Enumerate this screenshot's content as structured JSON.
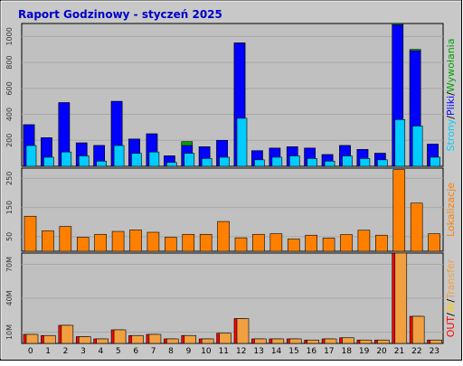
{
  "title": "Raport Godzinowy -  styczeń 2025",
  "colors": {
    "background": "#ffffff",
    "frame_bg": "#c8c8c8",
    "plot_bg": "#c0c0c0",
    "title": "#0000cc",
    "pages": "#0000ff",
    "files": "#00ccff",
    "hits": "#00a000",
    "visits": "#ff8000",
    "traffic": "#ff0000",
    "in": "#ffcc00",
    "out": "#f0a040"
  },
  "chart_data": [
    {
      "type": "bar",
      "panel": "top",
      "categories": [
        "0",
        "1",
        "2",
        "3",
        "4",
        "5",
        "6",
        "7",
        "8",
        "9",
        "10",
        "11",
        "12",
        "13",
        "14",
        "15",
        "16",
        "17",
        "18",
        "19",
        "20",
        "21",
        "22",
        "23"
      ],
      "ylim": [
        0,
        1100
      ],
      "yticks": [
        "200",
        "400",
        "600",
        "800",
        "1000"
      ],
      "ytick_values": [
        200,
        400,
        600,
        800,
        1000
      ],
      "side_label_parts": [
        "Wywołania",
        "/",
        "Pliki",
        "/",
        "Strony"
      ],
      "series": [
        {
          "name": "Wywołania",
          "values": [
            320,
            220,
            490,
            180,
            160,
            500,
            210,
            250,
            80,
            190,
            150,
            200,
            950,
            120,
            140,
            150,
            140,
            90,
            160,
            130,
            100,
            1100,
            900,
            170
          ]
        },
        {
          "name": "Pliki",
          "values": [
            320,
            220,
            490,
            180,
            160,
            500,
            210,
            250,
            80,
            160,
            150,
            200,
            950,
            120,
            140,
            150,
            140,
            90,
            160,
            130,
            100,
            1090,
            890,
            170
          ]
        },
        {
          "name": "Strony",
          "values": [
            160,
            70,
            110,
            80,
            40,
            160,
            100,
            110,
            30,
            100,
            60,
            70,
            370,
            50,
            70,
            80,
            60,
            40,
            80,
            60,
            50,
            360,
            310,
            70
          ]
        }
      ]
    },
    {
      "type": "bar",
      "panel": "middle",
      "categories": [
        "0",
        "1",
        "2",
        "3",
        "4",
        "5",
        "6",
        "7",
        "8",
        "9",
        "10",
        "11",
        "12",
        "13",
        "14",
        "15",
        "16",
        "17",
        "18",
        "19",
        "20",
        "21",
        "22",
        "23"
      ],
      "ylim": [
        0,
        285
      ],
      "yticks": [
        "50",
        "150",
        "250"
      ],
      "ytick_values": [
        50,
        150,
        250
      ],
      "side_label_parts": [
        "Lokalizacje"
      ],
      "series": [
        {
          "name": "Lokalizacje",
          "values": [
            120,
            70,
            85,
            48,
            58,
            68,
            73,
            65,
            48,
            58,
            58,
            102,
            46,
            58,
            60,
            42,
            55,
            45,
            57,
            72,
            55,
            280,
            165,
            60
          ]
        }
      ]
    },
    {
      "type": "bar",
      "panel": "bottom",
      "categories": [
        "0",
        "1",
        "2",
        "3",
        "4",
        "5",
        "6",
        "7",
        "8",
        "9",
        "10",
        "11",
        "12",
        "13",
        "14",
        "15",
        "16",
        "17",
        "18",
        "19",
        "20",
        "21",
        "22",
        "23"
      ],
      "ylim": [
        0,
        80
      ],
      "yticks": [
        "10M",
        "40M",
        "70M"
      ],
      "ytick_values": [
        10,
        40,
        70
      ],
      "side_label_parts": [
        "Transfer",
        "/",
        "IN",
        "/",
        "OUT"
      ],
      "series": [
        {
          "name": "Transfer",
          "values": [
            8,
            7,
            16,
            6,
            4,
            12,
            7,
            8,
            4,
            7,
            4,
            9,
            22,
            4,
            4,
            4,
            3,
            4,
            5,
            3,
            3,
            80,
            24,
            3
          ]
        },
        {
          "name": "IN",
          "values": [
            0,
            0,
            0,
            0,
            0,
            0,
            0,
            0,
            0,
            0,
            0,
            0,
            0,
            0,
            0,
            0,
            0,
            0,
            0,
            0,
            0,
            0,
            0,
            0
          ]
        },
        {
          "name": "OUT",
          "values": [
            8,
            7,
            16,
            6,
            4,
            12,
            7,
            8,
            4,
            7,
            4,
            9,
            22,
            4,
            4,
            4,
            3,
            4,
            5,
            3,
            3,
            80,
            24,
            3
          ]
        }
      ]
    }
  ]
}
